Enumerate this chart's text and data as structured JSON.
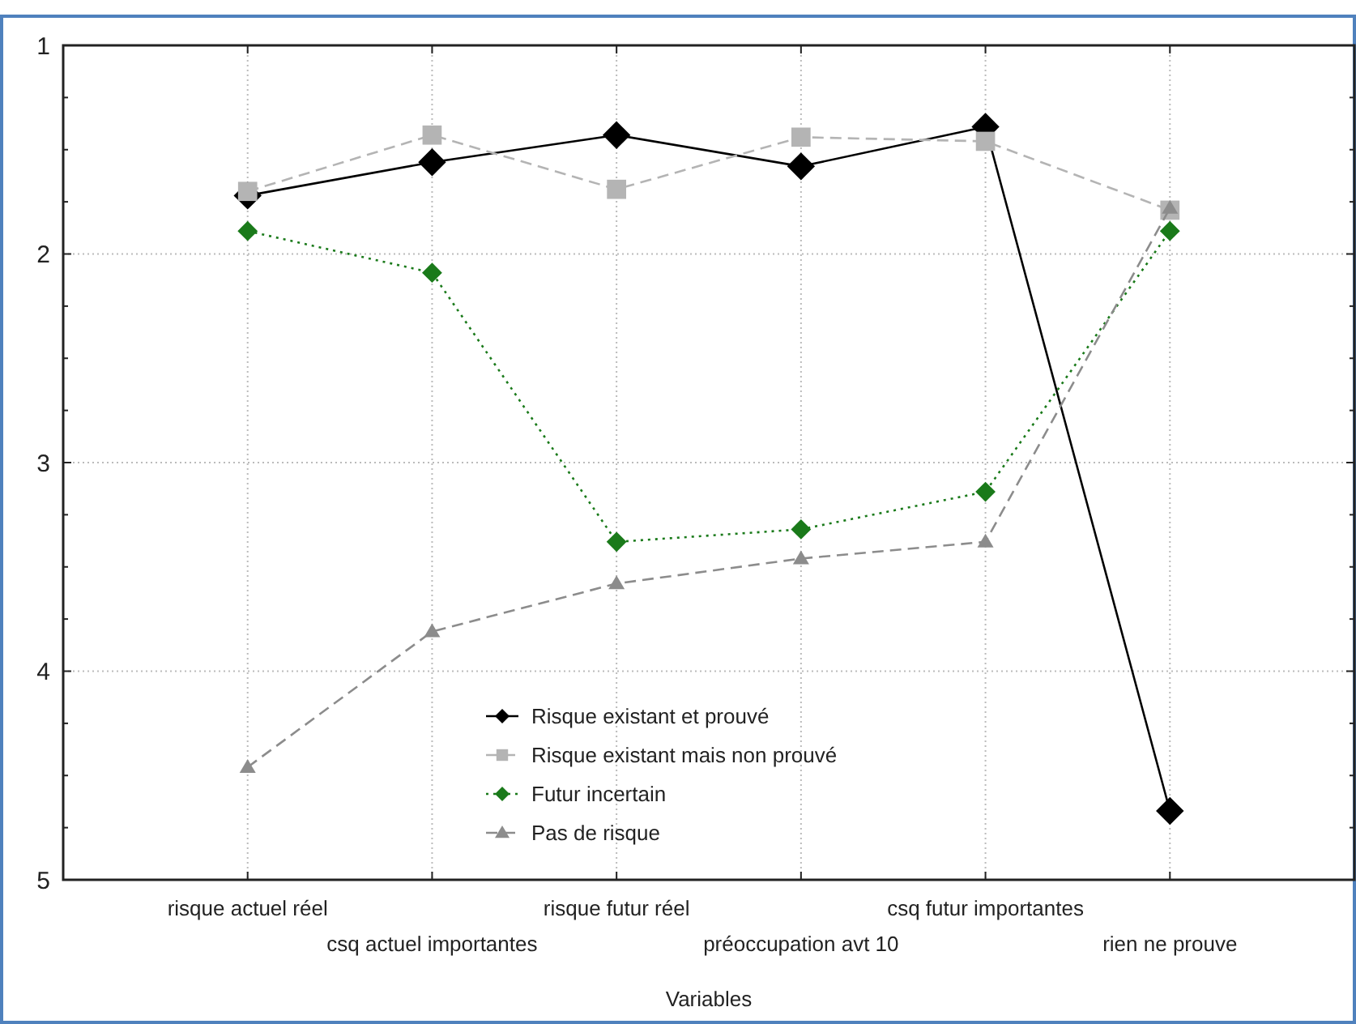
{
  "chart_data": {
    "type": "line",
    "xlabel": "Variables",
    "categories": [
      "risque actuel réel",
      "csq actuel importantes",
      "risque futur réel",
      "préoccupation avt 10",
      "csq futur importantes",
      "rien ne prouve"
    ],
    "series": [
      {
        "name": "Risque existant et prouvé",
        "color": "#000000",
        "marker": "diamond",
        "line_style": "solid",
        "values": [
          1.72,
          1.56,
          1.43,
          1.58,
          1.39,
          4.67
        ]
      },
      {
        "name": "Risque existant mais non prouvé",
        "color": "#b4b4b4",
        "marker": "square",
        "line_style": "dashed",
        "values": [
          1.7,
          1.43,
          1.69,
          1.44,
          1.46,
          1.79
        ]
      },
      {
        "name": "Futur incertain",
        "color": "#1a7a1a",
        "marker": "diamond",
        "line_style": "dotted",
        "values": [
          1.89,
          2.09,
          3.38,
          3.32,
          3.14,
          1.89
        ]
      },
      {
        "name": "Pas de risque",
        "color": "#8c8c8c",
        "marker": "triangle",
        "line_style": "dashed",
        "values": [
          4.46,
          3.81,
          3.58,
          3.46,
          3.38,
          1.78
        ]
      }
    ],
    "ylim": [
      5,
      1
    ],
    "yticks": [
      1,
      {
        "value": 1.25,
        "label": null
      },
      {
        "value": 1.5,
        "label": null
      },
      {
        "value": 1.75,
        "label": null
      },
      2,
      {
        "value": 2.25,
        "label": null
      },
      {
        "value": 2.5,
        "label": null
      },
      {
        "value": 2.75,
        "label": null
      },
      3,
      {
        "value": 3.25,
        "label": null
      },
      {
        "value": 3.5,
        "label": null
      },
      {
        "value": 3.75,
        "label": null
      },
      4,
      {
        "value": 4.25,
        "label": null
      },
      {
        "value": 4.5,
        "label": null
      },
      {
        "value": 4.75,
        "label": null
      },
      5
    ],
    "grid": true,
    "legend": "bottom"
  }
}
